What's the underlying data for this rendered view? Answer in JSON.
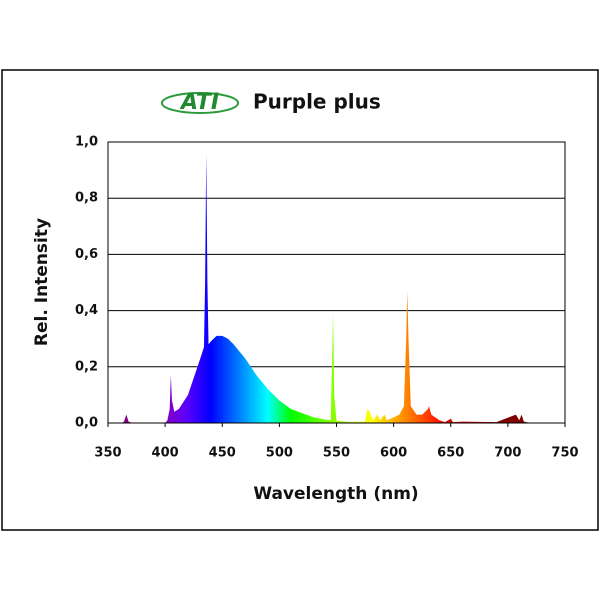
{
  "chart_data": {
    "type": "area",
    "title": "Purple plus",
    "logo": "ATI",
    "x_label": "Wavelength (nm)",
    "y_label": "Rel. Intensity",
    "x": [
      362,
      364,
      366,
      368,
      372,
      400,
      402,
      404,
      405,
      406,
      408,
      412,
      420,
      430,
      434,
      435,
      436,
      437,
      438,
      440,
      445,
      450,
      455,
      460,
      470,
      480,
      490,
      500,
      510,
      520,
      530,
      540,
      545,
      546,
      547,
      548,
      550,
      560,
      575,
      577,
      579,
      582,
      586,
      588,
      592,
      594,
      600,
      605,
      609,
      611,
      612,
      613,
      615,
      620,
      625,
      630,
      631,
      633,
      640,
      645,
      650,
      652,
      660,
      690,
      707,
      710,
      712,
      714,
      720,
      740,
      745
    ],
    "values": [
      0,
      0.005,
      0.03,
      0.005,
      0,
      0,
      0.01,
      0.05,
      0.17,
      0.08,
      0.04,
      0.05,
      0.1,
      0.22,
      0.27,
      0.5,
      0.96,
      0.5,
      0.28,
      0.29,
      0.31,
      0.31,
      0.3,
      0.28,
      0.23,
      0.17,
      0.12,
      0.08,
      0.05,
      0.035,
      0.02,
      0.012,
      0.01,
      0.2,
      0.39,
      0.1,
      0.008,
      0.004,
      0.005,
      0.05,
      0.04,
      0.01,
      0.03,
      0.01,
      0.03,
      0.01,
      0.02,
      0.03,
      0.06,
      0.3,
      0.47,
      0.3,
      0.06,
      0.03,
      0.03,
      0.05,
      0.06,
      0.03,
      0.01,
      0.003,
      0.015,
      0.003,
      0.005,
      0.003,
      0.03,
      0.01,
      0.03,
      0.005,
      0,
      0.002,
      0
    ],
    "xlim": [
      350,
      750
    ],
    "xticks": [
      350,
      400,
      450,
      500,
      550,
      600,
      650,
      700,
      750
    ],
    "ylim": [
      0,
      1
    ],
    "yticks": [
      {
        "value": 0,
        "label": "0,0"
      },
      {
        "value": 0.2,
        "label": "0,2"
      },
      {
        "value": 0.4,
        "label": "0,4"
      },
      {
        "value": 0.6,
        "label": "0,6"
      },
      {
        "value": 0.8,
        "label": "0,8"
      },
      {
        "value": 1,
        "label": "1,0"
      }
    ],
    "grid": true
  }
}
